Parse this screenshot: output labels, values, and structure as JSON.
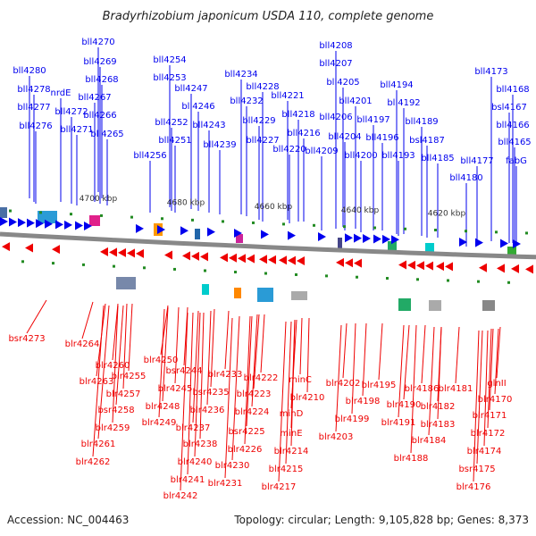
{
  "title": "Bradyrhizobium japonicum USDA 110, complete genome",
  "accession": "Accession: NC_004463",
  "topology": "Topology: circular; Length: 9,105,828 bp; Genes: 8,373",
  "colors": {
    "forward": "#0000ee",
    "reverse": "#ee0000",
    "backbone": "#888888",
    "marker": "#228b22"
  },
  "ticks": [
    "4700 kbp",
    "4680 kbp",
    "4660 kbp",
    "4640 kbp",
    "4620 kbp"
  ],
  "top_labels": [
    "bll4270",
    "bll4280",
    "bll4269",
    "bll4278",
    "bll4268",
    "nrdE",
    "bll4277",
    "bll4267",
    "bll4272",
    "bll4266",
    "bll4276",
    "bll4271",
    "bll4265",
    "bll4254",
    "bll4253",
    "bll4247",
    "bll4246",
    "bll4252",
    "bll4243",
    "bll4251",
    "bll4256",
    "bll4239",
    "bll4234",
    "bll4228",
    "bll4232",
    "bll4221",
    "bll4229",
    "bll4218",
    "bll4227",
    "bll4216",
    "bll4220",
    "bll4208",
    "bll4207",
    "bll4205",
    "bll4201",
    "bll4206",
    "bll4197",
    "bll4204",
    "bll4196",
    "bll4209",
    "bll4200",
    "bll4194",
    "bll4192",
    "bll4189",
    "bll4193",
    "bsl4187",
    "bll4185",
    "bll4173",
    "bll4168",
    "bsl4167",
    "bll4166",
    "bll4165",
    "bll4177",
    "fabG",
    "bll4180"
  ],
  "bottom_labels": [
    "bsr4273",
    "blr4264",
    "blr4250",
    "blr4260",
    "blr4263",
    "blr4255",
    "blr4257",
    "bsr4258",
    "blr4259",
    "blr4261",
    "blr4262",
    "bsr4244",
    "blr4245",
    "blr4248",
    "blr4249",
    "bsr4235",
    "blr4233",
    "blr4236",
    "blr4237",
    "blr4238",
    "blr4240",
    "blr4241",
    "blr4242",
    "blr4222",
    "blr4223",
    "blr4224",
    "bsr4225",
    "blr4226",
    "blr4230",
    "blr4231",
    "minC",
    "blr4210",
    "minD",
    "minE",
    "blr4214",
    "blr4215",
    "blr4217",
    "blr4202",
    "blr4195",
    "blr4198",
    "blr4199",
    "blr4203",
    "blr4186",
    "blr4181",
    "glnII",
    "blr4190",
    "blr4191",
    "blr4182",
    "blr4183",
    "blr4184",
    "blr4188",
    "blr4170",
    "blr4171",
    "blr4172",
    "blr4174",
    "bsr4175",
    "blr4176"
  ]
}
